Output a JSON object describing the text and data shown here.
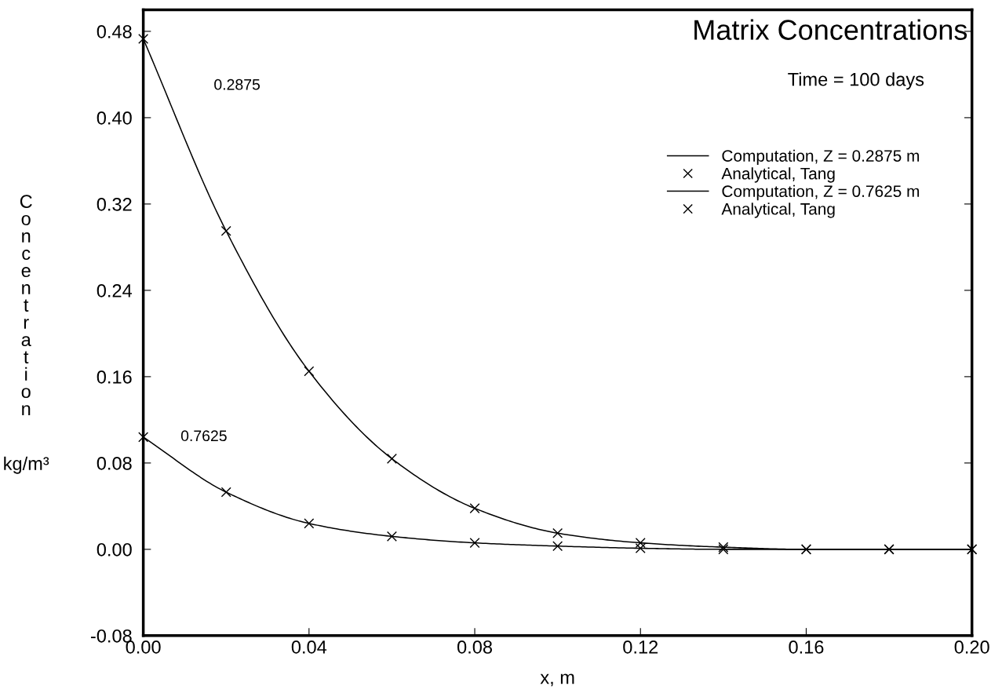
{
  "chart_data": {
    "type": "line",
    "title": "Matrix Concentrations",
    "subtitle": "Time = 100 days",
    "xlabel": "x, m",
    "ylabel": "Concentration kg/m³",
    "xlim": [
      0.0,
      0.2
    ],
    "xticks": [
      {
        "value": 0.0,
        "label": "0.00"
      },
      0.04,
      0.08,
      0.12,
      0.16,
      {
        "value": 0.2,
        "label": "0.20"
      }
    ],
    "ylim": [
      -0.08,
      0.5
    ],
    "yticks": [
      -0.08,
      {
        "value": 0.0,
        "label": "0.00"
      },
      0.08,
      0.16,
      0.24,
      0.32,
      {
        "value": 0.4,
        "label": "0.40"
      },
      0.48
    ],
    "grid": false,
    "legend": "top right",
    "series": [
      {
        "name": "Computation, Z = 0.2875 m",
        "color": "#000000",
        "line_style": "solid",
        "x": [
          0.0,
          0.02,
          0.04,
          0.06,
          0.08,
          0.1,
          0.12,
          0.14,
          0.16,
          0.18,
          0.2
        ],
        "values": [
          0.473,
          0.295,
          0.165,
          0.084,
          0.038,
          0.015,
          0.006,
          0.002,
          0.0,
          0.0,
          0.0
        ]
      },
      {
        "name": "Analytical, Tang",
        "type": "scatter",
        "color": "#000000",
        "marker": "cross",
        "x": [
          0.0,
          0.02,
          0.04,
          0.06,
          0.08,
          0.1,
          0.12,
          0.14,
          0.16,
          0.18,
          0.2
        ],
        "values": [
          0.473,
          0.295,
          0.165,
          0.084,
          0.038,
          0.015,
          0.006,
          0.002,
          0.0,
          0.0,
          0.0
        ]
      },
      {
        "name": "Computation, Z = 0.7625 m",
        "color": "#000000",
        "line_style": "solid",
        "x": [
          0.0,
          0.02,
          0.04,
          0.06,
          0.08,
          0.1,
          0.12,
          0.14,
          0.16,
          0.18,
          0.2
        ],
        "values": [
          0.104,
          0.053,
          0.024,
          0.012,
          0.006,
          0.003,
          0.001,
          0.0,
          0.0,
          0.0,
          0.0
        ]
      },
      {
        "name": "Analytical, Tang",
        "type": "scatter",
        "color": "#000000",
        "marker": "cross",
        "x": [
          0.0,
          0.02,
          0.04,
          0.06,
          0.08,
          0.1,
          0.12,
          0.14,
          0.16,
          0.18,
          0.2
        ],
        "values": [
          0.104,
          0.053,
          0.024,
          0.012,
          0.006,
          0.003,
          0.001,
          0.0,
          0.0,
          0.0,
          0.0
        ]
      }
    ],
    "annotations": [
      "0.2875",
      "0.7625"
    ]
  }
}
